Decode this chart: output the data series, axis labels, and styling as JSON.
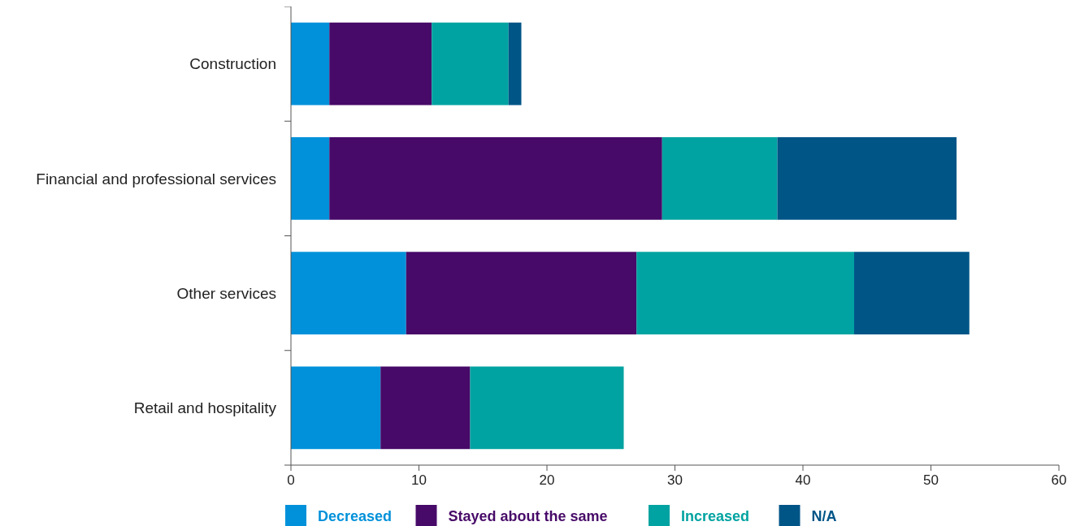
{
  "chart_data": {
    "type": "bar",
    "orientation": "horizontal",
    "stacked": true,
    "categories": [
      "Construction",
      "Financial and professional services",
      "Other services",
      "Retail and hospitality"
    ],
    "series": [
      {
        "name": "Decreased",
        "color": "#0091da",
        "values": [
          3,
          3,
          9,
          7
        ]
      },
      {
        "name": "Stayed about the same",
        "color": "#470a68",
        "values": [
          8,
          26,
          18,
          7
        ]
      },
      {
        "name": "Increased",
        "color": "#00a3a1",
        "values": [
          6,
          9,
          17,
          12
        ]
      },
      {
        "name": "N/A",
        "color": "#005587",
        "values": [
          1,
          14,
          9,
          0
        ]
      }
    ],
    "xlim": [
      0,
      60
    ],
    "xticks": [
      0,
      10,
      20,
      30,
      40,
      50,
      60
    ],
    "grid": false,
    "legend": "bottom"
  }
}
